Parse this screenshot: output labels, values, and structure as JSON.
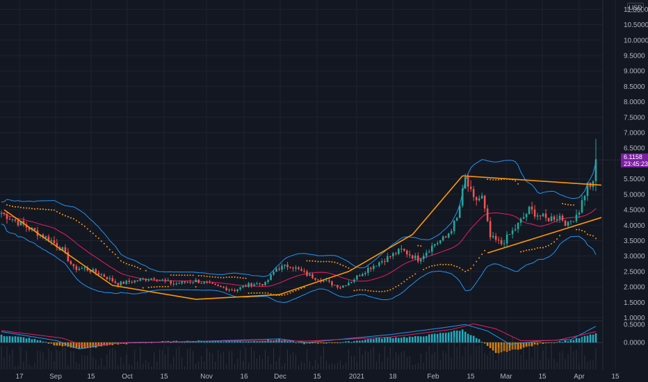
{
  "currency_label": "USD",
  "price_badge": {
    "price": "6.1158",
    "countdown": "23:45:23",
    "color": "#7b1fa2"
  },
  "colors": {
    "background": "#131722",
    "grid": "#1f2330",
    "up_candle": "#26a69a",
    "down_candle": "#ef5350",
    "bollinger": "#2196f3",
    "trendline": "#ff9800",
    "sar": "#ff9800",
    "ma": "#e91e63",
    "macd": "#2196f3",
    "signal": "#e91e63",
    "hist_pos": "#26c6da",
    "hist_neg": "#ff9800"
  },
  "chart_data": [
    {
      "type": "candlestick",
      "scale": "linear",
      "ylim": [
        0.9,
        11.3
      ],
      "y_ticks": [
        "11.0000",
        "10.5000",
        "10.0000",
        "9.5000",
        "9.0000",
        "8.5000",
        "8.0000",
        "7.5000",
        "7.0000",
        "6.5000",
        "6.0000",
        "5.5000",
        "5.0000",
        "4.5000",
        "4.0000",
        "3.5000",
        "3.0000",
        "2.5000",
        "2.0000",
        "1.5000",
        "1.0000"
      ],
      "x_ticks": [
        "17",
        "Sep",
        "15",
        "Oct",
        "15",
        "Nov",
        "16",
        "Dec",
        "15",
        "2021",
        "18",
        "Feb",
        "15",
        "Mar",
        "15",
        "Apr",
        "15"
      ],
      "close_path": [
        [
          0,
          4.4
        ],
        [
          6,
          4.1
        ],
        [
          12,
          3.8
        ],
        [
          18,
          3.5
        ],
        [
          22,
          3.2
        ],
        [
          26,
          2.6
        ],
        [
          30,
          2.6
        ],
        [
          36,
          2.4
        ],
        [
          42,
          2.1
        ],
        [
          48,
          2.2
        ],
        [
          55,
          2.3
        ],
        [
          62,
          2.1
        ],
        [
          70,
          2.2
        ],
        [
          78,
          2.0
        ],
        [
          84,
          1.9
        ],
        [
          90,
          2.1
        ],
        [
          95,
          2.1
        ],
        [
          99,
          2.6
        ],
        [
          104,
          2.7
        ],
        [
          110,
          2.4
        ],
        [
          116,
          2.2
        ],
        [
          122,
          2.0
        ],
        [
          126,
          2.2
        ],
        [
          132,
          2.6
        ],
        [
          138,
          2.9
        ],
        [
          144,
          3.2
        ],
        [
          150,
          2.9
        ],
        [
          156,
          3.4
        ],
        [
          160,
          3.6
        ],
        [
          164,
          4.2
        ],
        [
          167,
          5.5
        ],
        [
          170,
          4.8
        ],
        [
          173,
          4.9
        ],
        [
          176,
          3.6
        ],
        [
          180,
          3.4
        ],
        [
          185,
          3.9
        ],
        [
          190,
          4.5
        ],
        [
          196,
          4.2
        ],
        [
          201,
          4.3
        ],
        [
          204,
          4.0
        ],
        [
          208,
          4.5
        ],
        [
          211,
          5.3
        ],
        [
          213,
          5.3
        ],
        [
          214,
          6.1
        ]
      ],
      "annotations": {
        "cup_curve": [
          [
            1,
            4.5
          ],
          [
            40,
            2.05
          ],
          [
            70,
            1.6
          ],
          [
            100,
            1.75
          ],
          [
            125,
            2.5
          ],
          [
            148,
            3.7
          ],
          [
            166,
            5.6
          ]
        ],
        "resistance_line": [
          [
            166,
            5.6
          ],
          [
            216,
            5.3
          ]
        ],
        "support_line": [
          [
            175,
            3.1
          ],
          [
            216,
            4.25
          ]
        ]
      }
    },
    {
      "type": "macd",
      "ylim": [
        -0.75,
        0.6
      ],
      "y_ticks": [
        "0.5000",
        "0.0000"
      ],
      "histogram_path": [
        [
          0,
          0.2
        ],
        [
          10,
          0.12
        ],
        [
          20,
          -0.08
        ],
        [
          30,
          -0.18
        ],
        [
          40,
          -0.06
        ],
        [
          55,
          0.02
        ],
        [
          70,
          0.04
        ],
        [
          90,
          0.03
        ],
        [
          100,
          0.08
        ],
        [
          110,
          -0.04
        ],
        [
          125,
          0.02
        ],
        [
          135,
          0.12
        ],
        [
          150,
          0.16
        ],
        [
          160,
          0.28
        ],
        [
          166,
          0.35
        ],
        [
          172,
          0.08
        ],
        [
          178,
          -0.3
        ],
        [
          185,
          -0.2
        ],
        [
          195,
          -0.02
        ],
        [
          205,
          0.06
        ],
        [
          214,
          0.25
        ]
      ],
      "macd_path": [
        [
          0,
          0.3
        ],
        [
          20,
          0.05
        ],
        [
          28,
          -0.18
        ],
        [
          40,
          -0.02
        ],
        [
          70,
          0.03
        ],
        [
          100,
          0.1
        ],
        [
          110,
          0.0
        ],
        [
          140,
          0.22
        ],
        [
          160,
          0.42
        ],
        [
          167,
          0.5
        ],
        [
          175,
          0.32
        ],
        [
          183,
          -0.05
        ],
        [
          195,
          0.05
        ],
        [
          205,
          0.08
        ],
        [
          214,
          0.45
        ]
      ],
      "signal_path": [
        [
          0,
          0.33
        ],
        [
          22,
          0.12
        ],
        [
          30,
          -0.1
        ],
        [
          45,
          0.0
        ],
        [
          80,
          0.04
        ],
        [
          110,
          0.04
        ],
        [
          140,
          0.15
        ],
        [
          162,
          0.36
        ],
        [
          170,
          0.52
        ],
        [
          178,
          0.38
        ],
        [
          187,
          0.05
        ],
        [
          200,
          0.06
        ],
        [
          214,
          0.3
        ]
      ]
    }
  ]
}
